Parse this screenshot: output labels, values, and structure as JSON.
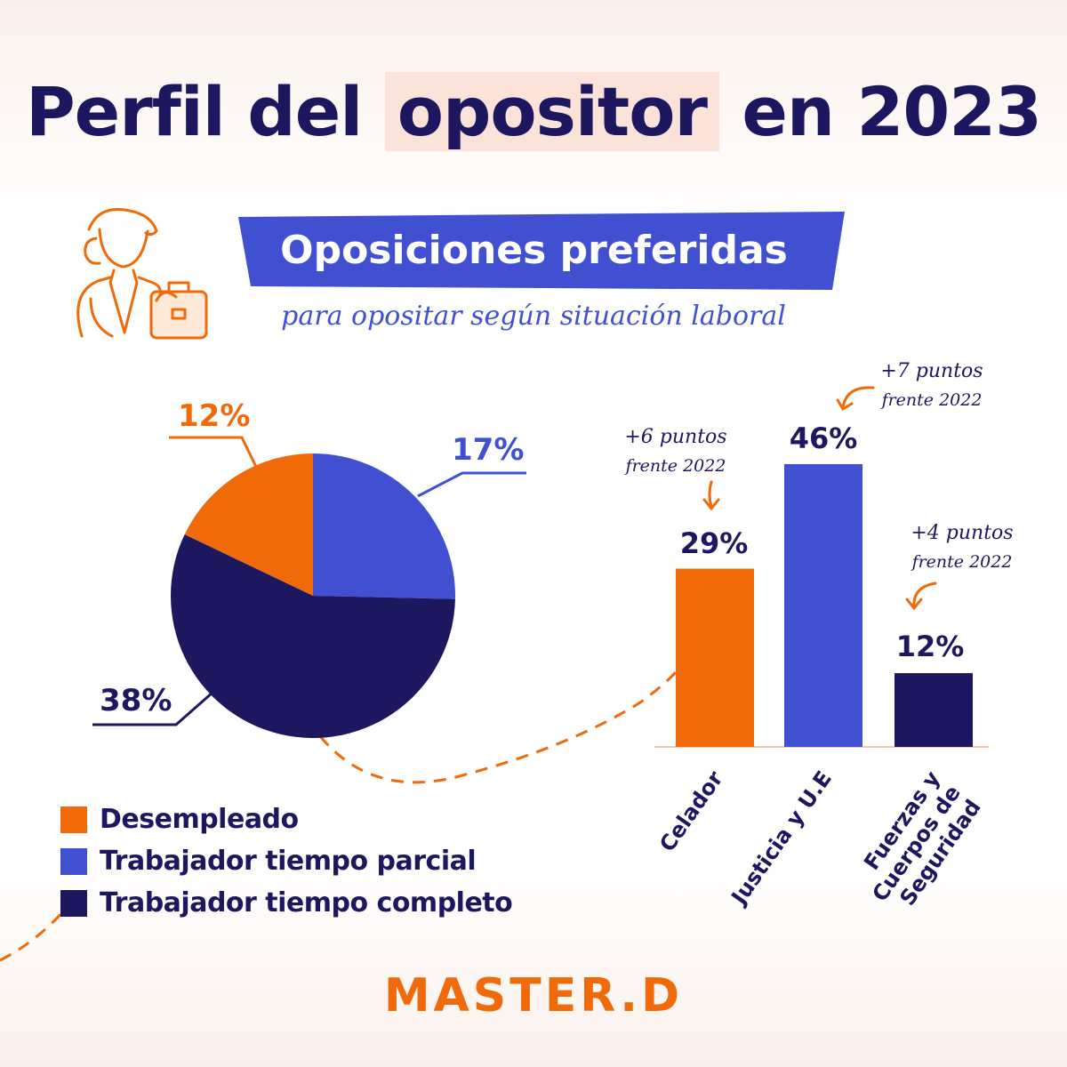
{
  "header": {
    "title_before": "Perfil del",
    "title_highlight": "opositor",
    "title_after": "en 2023",
    "banner": "Oposiciones preferidas",
    "subtitle": "para opositar según situación laboral"
  },
  "colors": {
    "orange": "#f06a0a",
    "blue": "#4150d0",
    "navy": "#1d1760",
    "highlight": "#fbe3d9"
  },
  "icons": {
    "illustration": "businessman-with-briefcase-icon"
  },
  "chart_data": [
    {
      "type": "pie",
      "slices": [
        {
          "label": "Desempleado",
          "value": 12,
          "display": "12%",
          "color": "#f06a0a"
        },
        {
          "label": "Trabajador tiempo parcial",
          "value": 17,
          "display": "17%",
          "color": "#4150d0"
        },
        {
          "label": "Trabajador tiempo completo",
          "value": 38,
          "display": "38%",
          "color": "#1d1760"
        }
      ],
      "legend": [
        {
          "label": "Desempleado",
          "color": "#f06a0a"
        },
        {
          "label": "Trabajador tiempo parcial",
          "color": "#4150d0"
        },
        {
          "label": "Trabajador tiempo completo",
          "color": "#1d1760"
        }
      ],
      "legend_position": "bottom-left"
    },
    {
      "type": "bar",
      "categories": [
        "Celador",
        "Justicia y U.E",
        "Fuerzas y Cuerpos de Seguridad"
      ],
      "values": [
        29,
        46,
        12
      ],
      "labels": [
        "29%",
        "46%",
        "12%"
      ],
      "colors": [
        "#f06a0a",
        "#4150d0",
        "#1d1760"
      ],
      "ylim": [
        0,
        50
      ],
      "annotations": [
        {
          "category": "Celador",
          "line1": "+6 puntos",
          "line2": "frente 2022"
        },
        {
          "category": "Justicia y U.E",
          "line1": "+7 puntos",
          "line2": "frente 2022"
        },
        {
          "category": "Fuerzas y Cuerpos de Seguridad",
          "line1": "+4 puntos",
          "line2": "frente 2022"
        }
      ]
    }
  ],
  "footer": {
    "logo": "MASTER.D"
  }
}
